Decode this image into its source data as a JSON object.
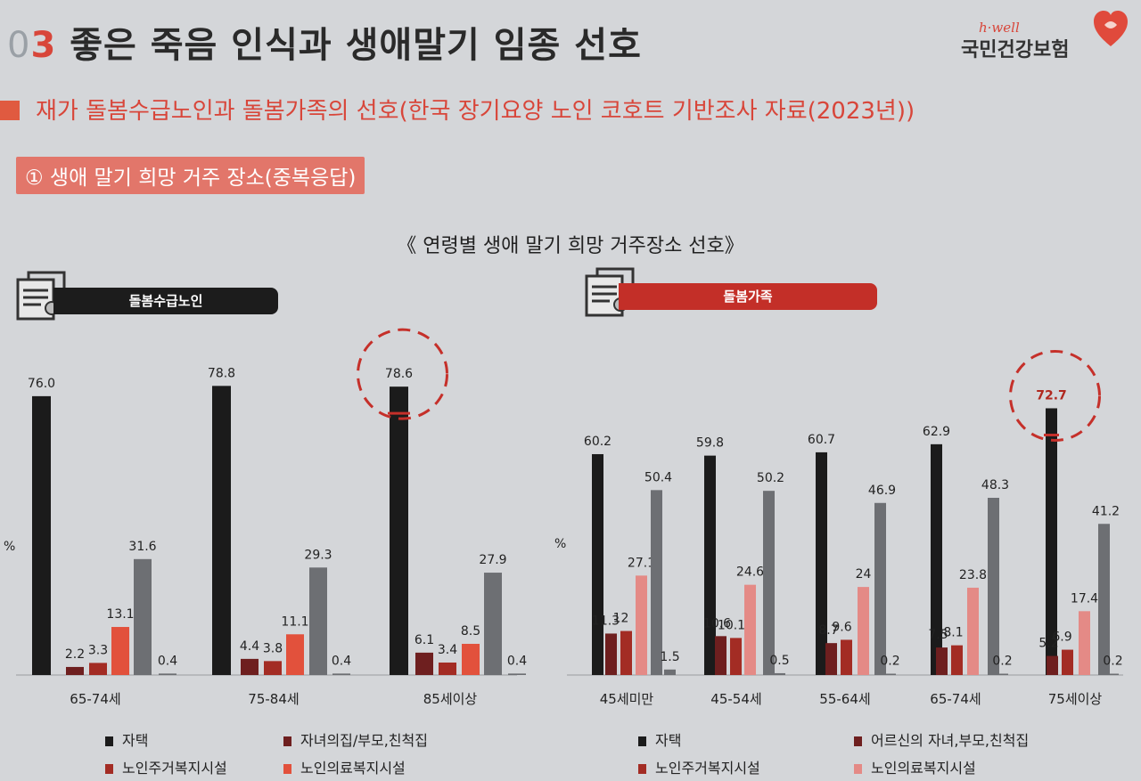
{
  "header": {
    "number_0": "0",
    "number_3": "3",
    "title": "좋은 죽음 인식과 생애말기 임종 선호"
  },
  "brand": {
    "tagline": "h·well",
    "name": "국민건강보험"
  },
  "subtitle": "재가 돌봄수급노인과 돌봄가족의 선호(한국 장기요양 노인 코호트 기반조사 자료(2023년))",
  "section": "① 생애 말기 희망 거주 장소(중복응답)",
  "colors": {
    "black": "#1b1b1b",
    "darkred": "#6e1f1f",
    "red": "#a32c24",
    "orange": "#e2513c",
    "pink": "#e48a86",
    "gray": "#6d6f73",
    "accent": "#c5302a"
  },
  "chart_data": [
    {
      "type": "bar",
      "title": "《 연령별 생애 말기 희망 거주장소 선호》",
      "group_label": "돌봄수급노인",
      "ylabel": "%",
      "categories": [
        "65-74세",
        "75-84세",
        "85세이상"
      ],
      "series": [
        {
          "name": "자택",
          "color": "black",
          "values": [
            76.0,
            78.8,
            78.6
          ],
          "labels": [
            "76.0",
            "78.8",
            "78.6"
          ]
        },
        {
          "name": "자녀의집/부모,친척집",
          "color": "darkred",
          "values": [
            2.2,
            4.4,
            6.1
          ],
          "labels": [
            "2.2",
            "4.4",
            "6.1"
          ]
        },
        {
          "name": "노인주거복지시설",
          "color": "red",
          "values": [
            3.3,
            3.8,
            3.4
          ],
          "labels": [
            "3.3",
            "3.8",
            "3.4"
          ]
        },
        {
          "name": "노인의료복지시설",
          "color": "orange",
          "values": [
            13.1,
            11.1,
            8.5
          ],
          "labels": [
            "13.1",
            "11.1",
            "8.5"
          ]
        },
        {
          "name": "",
          "color": "gray",
          "values": [
            31.6,
            29.3,
            27.9
          ],
          "labels": [
            "31.6",
            "29.3",
            "27.9"
          ]
        },
        {
          "name": "",
          "color": "gray",
          "values": [
            0.4,
            0.4,
            0.4
          ],
          "labels": [
            "0.4",
            "0.4",
            "0.4"
          ]
        }
      ],
      "highlight_category": "85세이상"
    },
    {
      "type": "bar",
      "group_label": "돌봄가족",
      "ylabel": "%",
      "categories": [
        "45세미만",
        "45-54세",
        "55-64세",
        "65-74세",
        "75세이상"
      ],
      "series": [
        {
          "name": "자택",
          "color": "black",
          "values": [
            60.2,
            59.8,
            60.7,
            62.9,
            72.7
          ],
          "labels": [
            "60.2",
            "59.8",
            "60.7",
            "62.9",
            "72.7"
          ]
        },
        {
          "name": "어르신의 자녀,부모,친척집",
          "color": "darkred",
          "values": [
            11.3,
            10.6,
            8.7,
            7.5,
            5.2
          ],
          "labels": [
            "11.3",
            "10.6",
            "8.7",
            "7.5",
            "5.2"
          ]
        },
        {
          "name": "노인주거복지시설",
          "color": "red",
          "values": [
            12,
            10.1,
            9.6,
            8.1,
            6.9
          ],
          "labels": [
            "12",
            "10.1",
            "9.6",
            "8.1",
            "6.9"
          ]
        },
        {
          "name": "노인의료복지시설",
          "color": "pink",
          "values": [
            27.1,
            24.6,
            24,
            23.8,
            17.4
          ],
          "labels": [
            "27.1",
            "24.6",
            "24",
            "23.8",
            "17.4"
          ]
        },
        {
          "name": "",
          "color": "gray",
          "values": [
            50.4,
            50.2,
            46.9,
            48.3,
            41.2
          ],
          "labels": [
            "50.4",
            "50.2",
            "46.9",
            "48.3",
            "41.2"
          ]
        },
        {
          "name": "",
          "color": "gray",
          "values": [
            1.5,
            0.5,
            0.2,
            0.2,
            0.2
          ],
          "labels": [
            "1.5",
            "0.5",
            "0.2",
            "0.2",
            "0.2"
          ]
        }
      ],
      "highlight_category": "75세이상"
    }
  ],
  "legend_left": [
    "자택",
    "자녀의집/부모,친척집",
    "노인주거복지시설",
    "노인의료복지시설"
  ],
  "legend_right": [
    "자택",
    "어르신의 자녀,부모,친척집",
    "노인주거복지시설",
    "노인의료복지시설"
  ]
}
